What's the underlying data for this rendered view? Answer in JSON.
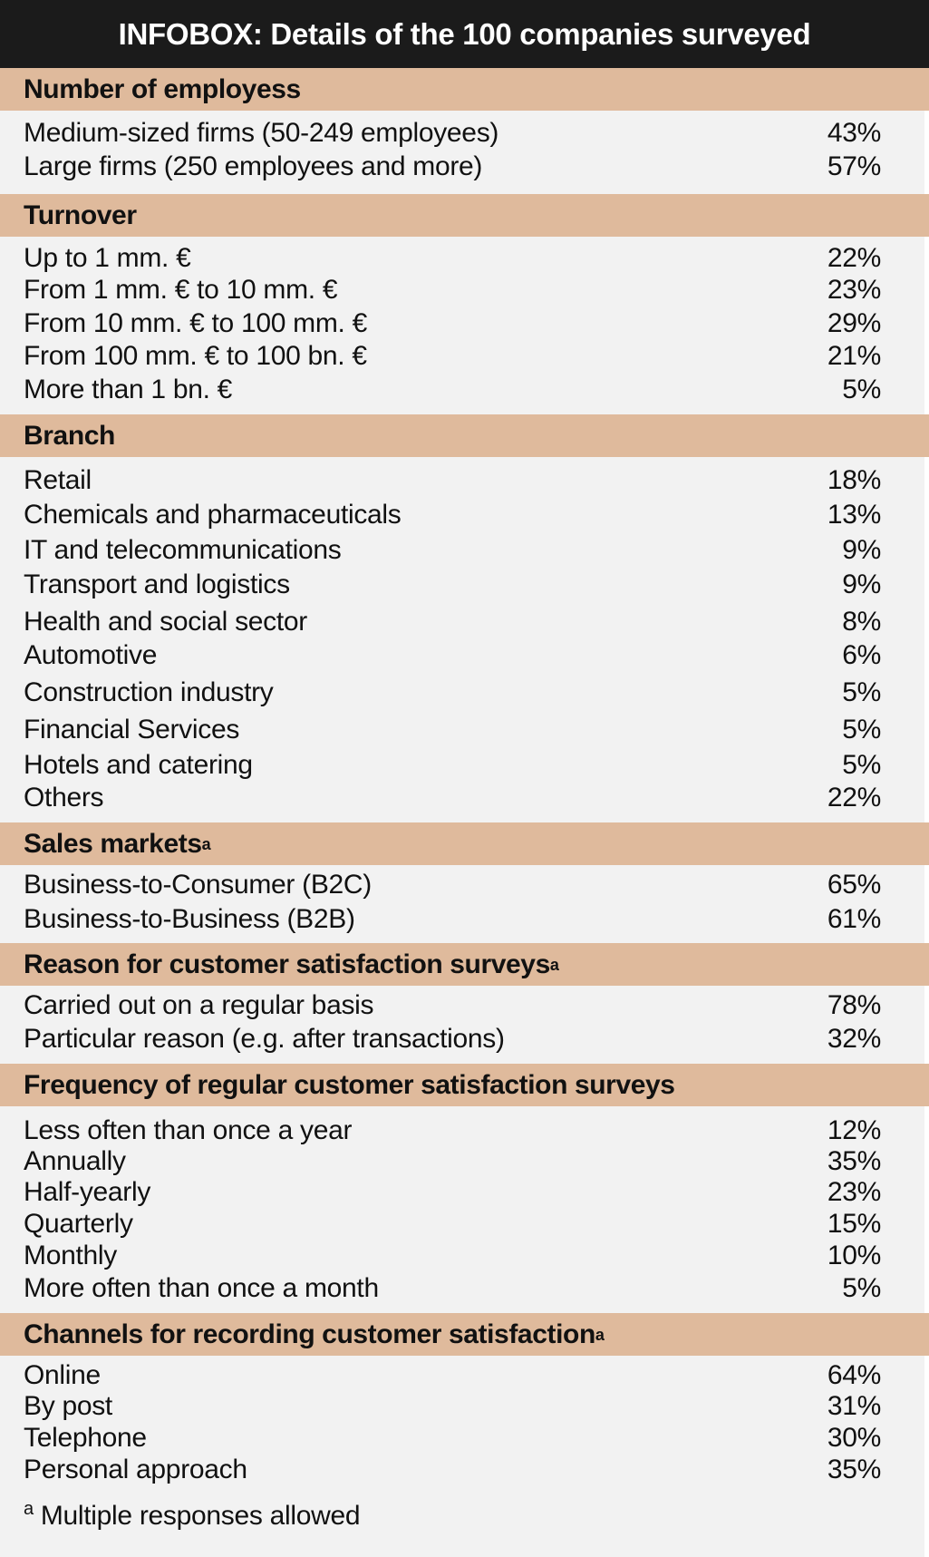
{
  "title": "INFOBOX: Details of the 100 companies surveyed",
  "colors": {
    "title_background": "#1b1b1b",
    "section_band": "#dfba9c",
    "panel_background": "#f2f2f2"
  },
  "sections": [
    {
      "title": "Number of employess",
      "superscript": "",
      "rows": [
        {
          "label": "Medium-sized firms (50-249 employees)",
          "value": "43%"
        },
        {
          "label": "Large firms (250 employees and more)",
          "value": "57%"
        }
      ]
    },
    {
      "title": "Turnover",
      "superscript": "",
      "rows": [
        {
          "label": "Up to 1 mm. €",
          "value": "22%"
        },
        {
          "label": "From 1 mm. € to 10 mm. €",
          "value": "23%"
        },
        {
          "label": "From 10 mm. € to 100 mm. €",
          "value": "29%"
        },
        {
          "label": "From 100 mm. € to 100 bn. €",
          "value": "21%"
        },
        {
          "label": "More than 1 bn. €",
          "value": "5%"
        }
      ]
    },
    {
      "title": "Branch",
      "superscript": "",
      "rows": [
        {
          "label": "Retail",
          "value": "18%"
        },
        {
          "label": "Chemicals and pharmaceuticals",
          "value": "13%"
        },
        {
          "label": "IT and telecommunications",
          "value": "9%"
        },
        {
          "label": "Transport and logistics",
          "value": "9%"
        },
        {
          "label": "Health and social sector",
          "value": "8%"
        },
        {
          "label": "Automotive",
          "value": "6%"
        },
        {
          "label": "Construction industry",
          "value": "5%"
        },
        {
          "label": "Financial Services",
          "value": "5%"
        },
        {
          "label": "Hotels and catering",
          "value": "5%"
        },
        {
          "label": "Others",
          "value": "22%"
        }
      ]
    },
    {
      "title": "Sales markets",
      "superscript": "a",
      "rows": [
        {
          "label": "Business-to-Consumer (B2C)",
          "value": "65%"
        },
        {
          "label": "Business-to-Business (B2B)",
          "value": "61%"
        }
      ]
    },
    {
      "title": "Reason for customer satisfaction surveys",
      "superscript": "a",
      "rows": [
        {
          "label": "Carried out on a regular basis",
          "value": "78%"
        },
        {
          "label": "Particular reason (e.g. after transactions)",
          "value": "32%"
        }
      ]
    },
    {
      "title": "Frequency of regular customer satisfaction surveys",
      "superscript": "",
      "rows": [
        {
          "label": "Less often than once a year",
          "value": "12%"
        },
        {
          "label": "Annually",
          "value": "35%"
        },
        {
          "label": "Half-yearly",
          "value": "23%"
        },
        {
          "label": "Quarterly",
          "value": "15%"
        },
        {
          "label": "Monthly",
          "value": "10%"
        },
        {
          "label": "More often than once a month",
          "value": "5%"
        }
      ]
    },
    {
      "title": "Channels for recording customer satisfaction",
      "superscript": "a",
      "rows": [
        {
          "label": "Online",
          "value": "64%"
        },
        {
          "label": "By post",
          "value": "31%"
        },
        {
          "label": "Telephone",
          "value": "30%"
        },
        {
          "label": "Personal approach",
          "value": "35%"
        }
      ]
    }
  ],
  "footnote": {
    "mark": "a",
    "text": "Multiple responses allowed"
  }
}
